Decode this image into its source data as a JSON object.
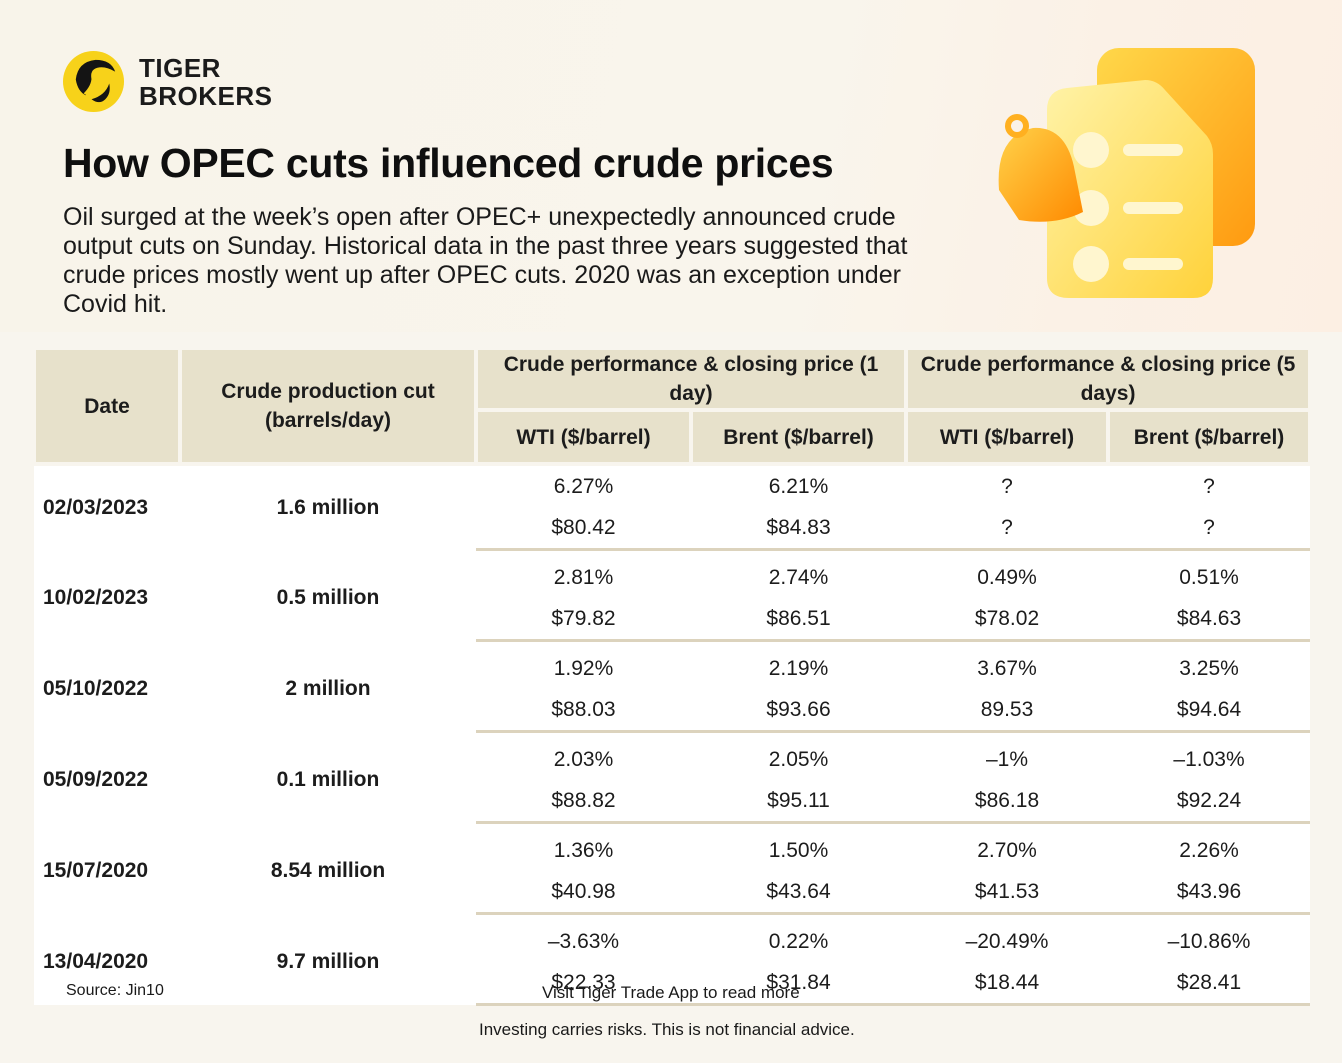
{
  "brand": {
    "line1": "TIGER",
    "line2": "BROKERS",
    "icon": "tiger-logo-icon"
  },
  "title": "How OPEC cuts influenced crude prices",
  "intro": "Oil surged at the week’s open after OPEC+ unexpectedly announced crude output cuts on Sunday. Historical data in the past three years suggested that crude prices mostly went up after OPEC cuts. 2020 was an exception under Covid hit.",
  "illustration": "bell-and-documents-icon",
  "colors": {
    "header_bg": "#e7e1cb",
    "positive": "#19c21c",
    "negative": "#e02020",
    "page_bg": "#f8f5ee"
  },
  "table": {
    "headers": {
      "date": "Date",
      "cut": "Crude production cut (barrels/day)",
      "group1": "Crude performance & closing price (1 day)",
      "group2": "Crude performance & closing price (5 days)",
      "wti": "WTI ($/barrel)",
      "brent": "Brent ($/barrel)"
    },
    "rows": [
      {
        "date": "02/03/2023",
        "cut": "1.6 million",
        "pct": [
          {
            "v": "6.27%",
            "s": "pos"
          },
          {
            "v": "6.21%",
            "s": "pos"
          },
          {
            "v": "?",
            "s": "neu"
          },
          {
            "v": "?",
            "s": "neu"
          }
        ],
        "price": [
          "$80.42",
          "$84.83",
          "?",
          "?"
        ]
      },
      {
        "date": "10/02/2023",
        "cut": "0.5 million",
        "pct": [
          {
            "v": "2.81%",
            "s": "pos"
          },
          {
            "v": "2.74%",
            "s": "pos"
          },
          {
            "v": "0.49%",
            "s": "pos"
          },
          {
            "v": "0.51%",
            "s": "pos"
          }
        ],
        "price": [
          "$79.82",
          "$86.51",
          "$78.02",
          "$84.63"
        ]
      },
      {
        "date": "05/10/2022",
        "cut": "2 million",
        "pct": [
          {
            "v": "1.92%",
            "s": "pos"
          },
          {
            "v": "2.19%",
            "s": "pos"
          },
          {
            "v": "3.67%",
            "s": "pos"
          },
          {
            "v": "3.25%",
            "s": "pos"
          }
        ],
        "price": [
          "$88.03",
          "$93.66",
          "89.53",
          "$94.64"
        ]
      },
      {
        "date": "05/09/2022",
        "cut": "0.1 million",
        "pct": [
          {
            "v": "2.03%",
            "s": "pos"
          },
          {
            "v": "2.05%",
            "s": "pos"
          },
          {
            "v": "–1%",
            "s": "neg"
          },
          {
            "v": "–1.03%",
            "s": "neg"
          }
        ],
        "price": [
          "$88.82",
          "$95.11",
          "$86.18",
          "$92.24"
        ]
      },
      {
        "date": "15/07/2020",
        "cut": "8.54 million",
        "pct": [
          {
            "v": "1.36%",
            "s": "pos"
          },
          {
            "v": "1.50%",
            "s": "pos"
          },
          {
            "v": "2.70%",
            "s": "pos"
          },
          {
            "v": "2.26%",
            "s": "pos"
          }
        ],
        "price": [
          "$40.98",
          "$43.64",
          "$41.53",
          "$43.96"
        ]
      },
      {
        "date": "13/04/2020",
        "cut": "9.7 million",
        "pct": [
          {
            "v": "–3.63%",
            "s": "neg"
          },
          {
            "v": "0.22%",
            "s": "pos"
          },
          {
            "v": "–20.49%",
            "s": "neg"
          },
          {
            "v": "–10.86%",
            "s": "neg"
          }
        ],
        "price": [
          "$22.33",
          "$31.84",
          "$18.44",
          "$28.41"
        ]
      }
    ]
  },
  "footer": {
    "source": "Source: Jin10",
    "visit": "Visit Tiger Trade App to read more",
    "risk": "Investing carries risks. This is not financial advice."
  }
}
